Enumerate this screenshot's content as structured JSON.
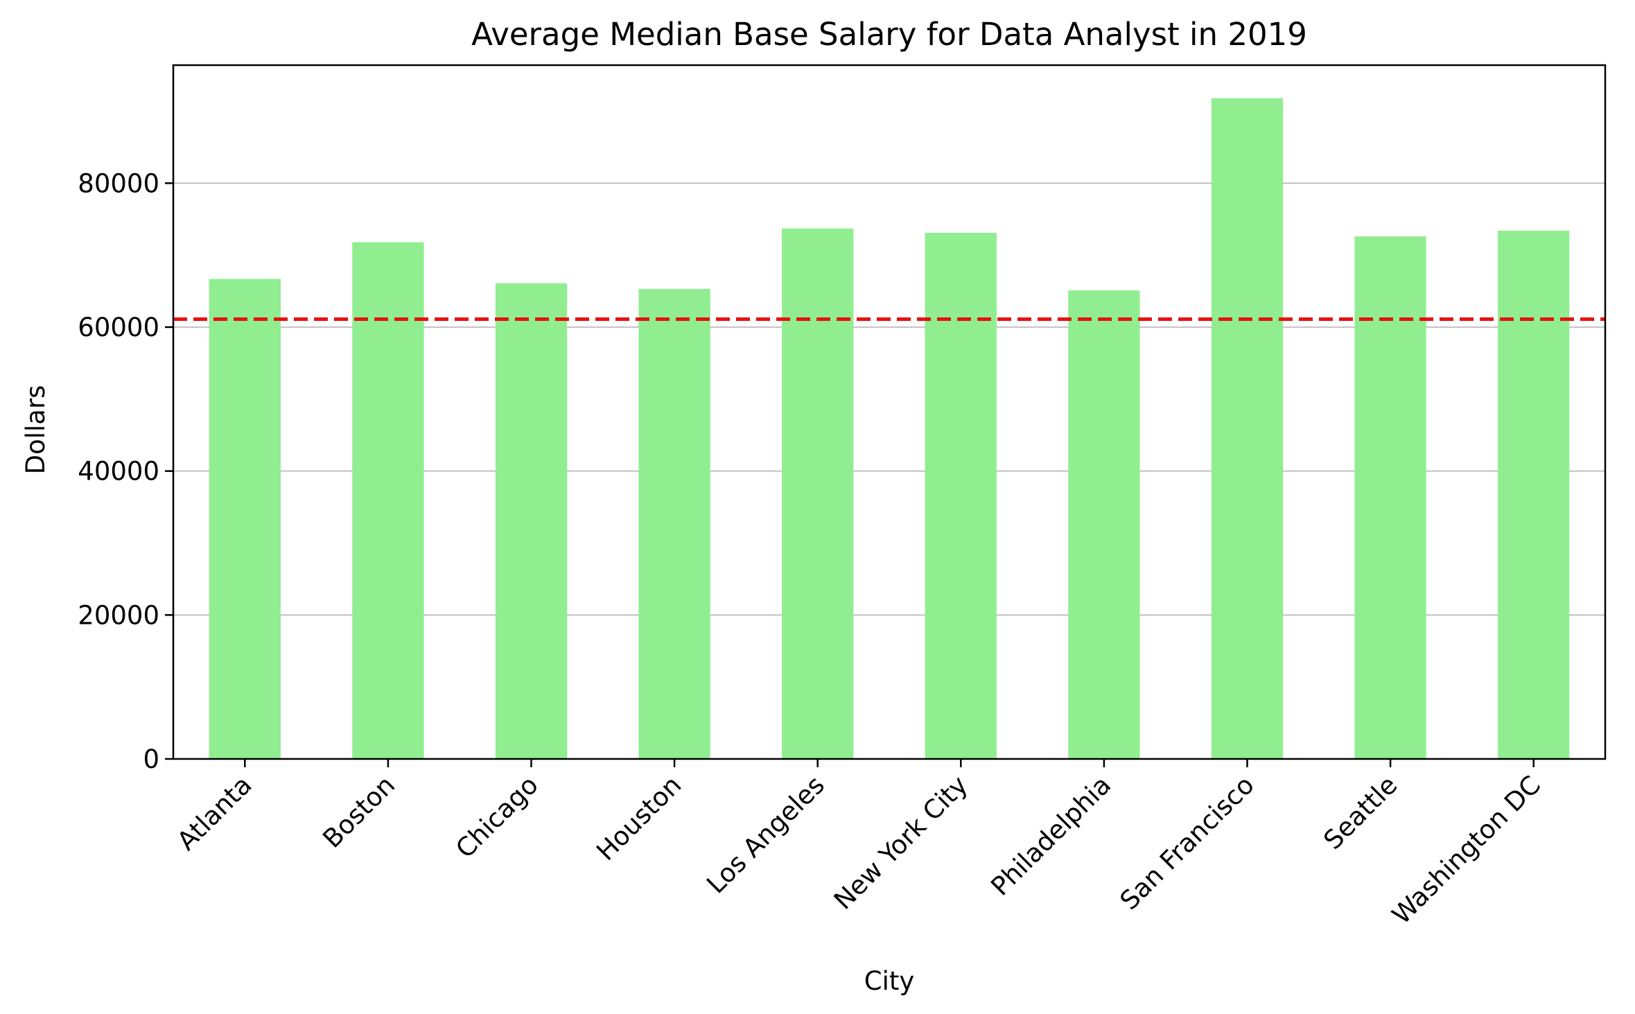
{
  "chart_data": {
    "type": "bar",
    "title": "Average Median Base Salary for Data Analyst in 2019",
    "xlabel": "City",
    "ylabel": "Dollars",
    "categories": [
      "Atlanta",
      "Boston",
      "Chicago",
      "Houston",
      "Los Angeles",
      "New York City",
      "Philadelphia",
      "San Francisco",
      "Seattle",
      "Washington DC"
    ],
    "values": [
      66700,
      71800,
      66100,
      65300,
      73700,
      73100,
      65100,
      91800,
      72600,
      73400
    ],
    "reference_line": {
      "value": 61100,
      "style": "dashed",
      "color": "#e8100e"
    },
    "ylim": [
      0,
      96400
    ],
    "yticks": [
      0,
      20000,
      40000,
      60000,
      80000
    ],
    "grid": {
      "axis": "y",
      "on": true
    },
    "bar_color": "#90ee90"
  }
}
